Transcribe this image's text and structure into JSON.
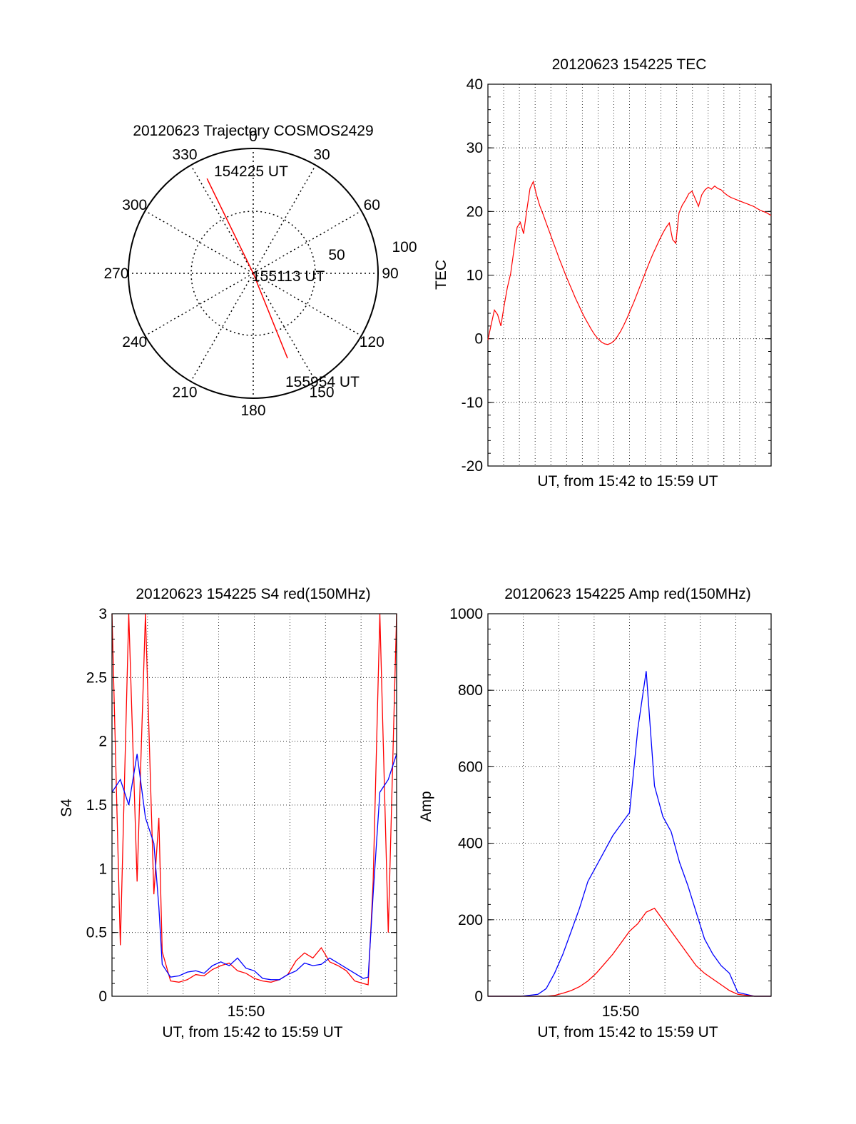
{
  "colors": {
    "red": "#ff0000",
    "blue": "#0000ff",
    "axis": "#000000",
    "grid": "#000000",
    "background": "#ffffff"
  },
  "chart_data": [
    {
      "type": "polar",
      "title": "20120623 Trajectory COSMOS2429",
      "azimuth_labels": [
        "0",
        "30",
        "60",
        "90",
        "120",
        "150",
        "180",
        "210",
        "240",
        "270",
        "300",
        "330"
      ],
      "radial_ring_labels": [
        "50",
        "100"
      ],
      "grid": true,
      "trajectory": {
        "color": "red",
        "points": [
          {
            "azimuth_deg": 334,
            "elevation_deg": 14
          },
          {
            "azimuth_deg": 0,
            "elevation_deg": 90
          },
          {
            "azimuth_deg": 158,
            "elevation_deg": 24
          }
        ]
      },
      "annotations": [
        "154225 UT",
        "155113 UT",
        "155954 UT"
      ]
    },
    {
      "type": "line",
      "title": "20120623 154225 TEC",
      "xlabel": "UT, from 15:42 to 15:59 UT",
      "ylabel": "TEC",
      "ylim": [
        -20,
        40
      ],
      "yticks": [
        "-20",
        "-10",
        "0",
        "10",
        "20",
        "30",
        "40"
      ],
      "xlim_seconds": [
        0,
        1049
      ],
      "grid": true,
      "series": [
        {
          "color": "red",
          "x": [
            0,
            12,
            24,
            36,
            48,
            60,
            72,
            84,
            96,
            108,
            120,
            132,
            144,
            156,
            168,
            180,
            192,
            204,
            216,
            228,
            240,
            252,
            264,
            276,
            288,
            300,
            312,
            324,
            336,
            348,
            360,
            372,
            384,
            396,
            408,
            420,
            432,
            444,
            456,
            468,
            480,
            492,
            504,
            516,
            528,
            540,
            552,
            564,
            576,
            588,
            600,
            612,
            624,
            636,
            648,
            660,
            672,
            684,
            696,
            708,
            720,
            732,
            744,
            756,
            768,
            780,
            792,
            804,
            816,
            828,
            840,
            852,
            864,
            876,
            888,
            900,
            912,
            924,
            936,
            948,
            960,
            972,
            984,
            996,
            1008,
            1020,
            1032,
            1044,
            1049
          ],
          "y": [
            -0.2,
            2.2,
            4.5,
            3.8,
            2.0,
            5.2,
            8.0,
            10.2,
            13.8,
            17.5,
            18.3,
            16.5,
            20.2,
            23.6,
            24.7,
            22.6,
            20.9,
            19.6,
            18.2,
            16.8,
            15.4,
            14.0,
            12.6,
            11.3,
            10.0,
            8.8,
            7.6,
            6.4,
            5.3,
            4.2,
            3.2,
            2.3,
            1.4,
            0.6,
            0.0,
            -0.5,
            -0.8,
            -0.9,
            -0.7,
            -0.3,
            0.4,
            1.2,
            2.2,
            3.3,
            4.5,
            5.7,
            7.0,
            8.3,
            9.6,
            10.9,
            12.2,
            13.4,
            14.5,
            15.6,
            16.6,
            17.5,
            18.2,
            15.6,
            15.0,
            19.8,
            21.0,
            21.8,
            22.8,
            23.2,
            22.0,
            20.8,
            22.6,
            23.4,
            23.8,
            23.5,
            24.0,
            23.6,
            23.4,
            22.9,
            22.5,
            22.2,
            22.0,
            21.8,
            21.6,
            21.4,
            21.2,
            21.0,
            20.8,
            20.5,
            20.2,
            20.0,
            19.8,
            19.5,
            19.4
          ]
        }
      ]
    },
    {
      "type": "line",
      "title": "20120623 154225 S4 red(150MHz)",
      "xlabel": "UT, from 15:42 to 15:59 UT",
      "ylabel": "S4",
      "ylim": [
        0,
        3
      ],
      "yticks": [
        "0",
        "0.5",
        "1",
        "1.5",
        "2",
        "2.5",
        "3"
      ],
      "xticks": [
        "15:50"
      ],
      "grid": true,
      "series": [
        {
          "color": "red",
          "x_minutes": [
            0,
            0.5,
            1,
            1.5,
            2,
            2.5,
            2.8,
            3.0,
            3.5,
            4,
            4.5,
            5,
            5.5,
            6,
            6.5,
            7,
            7.5,
            8,
            8.5,
            9,
            9.5,
            10,
            10.5,
            11,
            11.5,
            12,
            12.5,
            13,
            13.5,
            14,
            14.5,
            15,
            15.3,
            15.6,
            16,
            16.5,
            17
          ],
          "y": [
            3.0,
            0.4,
            3.0,
            0.9,
            3.0,
            0.8,
            1.4,
            0.35,
            0.12,
            0.11,
            0.13,
            0.17,
            0.16,
            0.21,
            0.24,
            0.26,
            0.2,
            0.18,
            0.14,
            0.12,
            0.11,
            0.13,
            0.17,
            0.28,
            0.34,
            0.3,
            0.38,
            0.27,
            0.24,
            0.2,
            0.12,
            0.1,
            0.09,
            0.9,
            3.0,
            0.5,
            3.0
          ]
        },
        {
          "color": "blue",
          "x_minutes": [
            0,
            0.5,
            1,
            1.5,
            2,
            2.5,
            2.8,
            3.0,
            3.5,
            4,
            4.5,
            5,
            5.5,
            6,
            6.5,
            7,
            7.5,
            8,
            8.5,
            9,
            9.5,
            10,
            10.5,
            11,
            11.5,
            12,
            12.5,
            13,
            13.5,
            14,
            14.5,
            15,
            15.3,
            15.6,
            16,
            16.5,
            17
          ],
          "y": [
            1.6,
            1.7,
            1.5,
            1.9,
            1.4,
            1.2,
            0.7,
            0.25,
            0.15,
            0.16,
            0.19,
            0.2,
            0.18,
            0.24,
            0.27,
            0.24,
            0.3,
            0.22,
            0.2,
            0.14,
            0.13,
            0.13,
            0.17,
            0.2,
            0.26,
            0.24,
            0.25,
            0.3,
            0.26,
            0.22,
            0.18,
            0.14,
            0.15,
            0.8,
            1.6,
            1.7,
            1.9
          ]
        }
      ]
    },
    {
      "type": "line",
      "title": "20120623 154225 Amp red(150MHz)",
      "xlabel": "UT, from 15:42 to 15:59 UT",
      "ylabel": "Amp",
      "ylim": [
        0,
        1000
      ],
      "yticks": [
        "0",
        "200",
        "400",
        "600",
        "800",
        "1000"
      ],
      "xticks": [
        "15:50"
      ],
      "grid": true,
      "series": [
        {
          "color": "red",
          "x_minutes": [
            0,
            1,
            2,
            3,
            3.5,
            4,
            4.5,
            5,
            5.5,
            6,
            6.5,
            7,
            7.5,
            8,
            8.5,
            9,
            9.5,
            10,
            10.5,
            11,
            11.5,
            12,
            12.5,
            13,
            13.5,
            14,
            14.5,
            15,
            16,
            17
          ],
          "y": [
            0,
            0,
            0,
            0,
            0,
            2,
            8,
            15,
            25,
            40,
            60,
            85,
            110,
            140,
            170,
            190,
            220,
            230,
            200,
            170,
            140,
            110,
            80,
            60,
            45,
            30,
            15,
            5,
            0,
            0
          ]
        },
        {
          "color": "blue",
          "x_minutes": [
            0,
            1,
            2,
            3,
            3.5,
            4,
            4.5,
            5,
            5.5,
            6,
            6.5,
            7,
            7.5,
            8,
            8.5,
            9,
            9.5,
            10,
            10.5,
            11,
            11.5,
            12,
            12.5,
            13,
            13.5,
            14,
            14.5,
            15,
            16,
            17
          ],
          "y": [
            0,
            0,
            0,
            5,
            20,
            60,
            110,
            170,
            230,
            300,
            340,
            380,
            420,
            450,
            480,
            700,
            850,
            550,
            470,
            430,
            350,
            290,
            220,
            150,
            110,
            80,
            60,
            10,
            0,
            0
          ]
        }
      ]
    }
  ]
}
